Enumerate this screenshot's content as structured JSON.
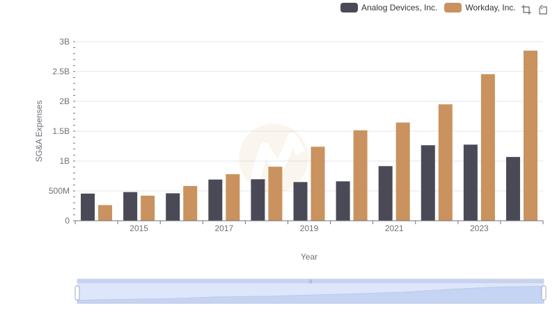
{
  "legend": [
    {
      "name": "Analog Devices, Inc.",
      "color": "#4a4a57"
    },
    {
      "name": "Workday, Inc.",
      "color": "#c9925e"
    }
  ],
  "toolbox": {
    "icons": [
      "zoom-icon",
      "restore-icon"
    ]
  },
  "chart_data": {
    "type": "bar",
    "xlabel": "Year",
    "ylabel": "SG&A Expenses",
    "categories": [
      "2014",
      "2015",
      "2016",
      "2017",
      "2018",
      "2019",
      "2020",
      "2021",
      "2022",
      "2023",
      "2024"
    ],
    "x_tick_labels": [
      "2015",
      "2017",
      "2019",
      "2021",
      "2023"
    ],
    "y_ticks": [
      {
        "value": 0,
        "label": "0"
      },
      {
        "value": 500000000,
        "label": "500M"
      },
      {
        "value": 1000000000,
        "label": "1B"
      },
      {
        "value": 1500000000,
        "label": "1.5B"
      },
      {
        "value": 2000000000,
        "label": "2B"
      },
      {
        "value": 2500000000,
        "label": "2.5B"
      },
      {
        "value": 3000000000,
        "label": "3B"
      }
    ],
    "ylim": [
      0,
      3000000000
    ],
    "grid": true,
    "legend_position": "top-right",
    "series": [
      {
        "name": "Analog Devices, Inc.",
        "color": "#4a4a57",
        "values": [
          455000000,
          480000000,
          460000000,
          690000000,
          695000000,
          648000000,
          660000000,
          915000000,
          1265000000,
          1275000000,
          1068000000
        ]
      },
      {
        "name": "Workday, Inc.",
        "color": "#c9925e",
        "values": [
          262000000,
          420000000,
          582000000,
          780000000,
          905000000,
          1240000000,
          1515000000,
          1645000000,
          1950000000,
          2455000000,
          2850000000
        ]
      }
    ],
    "dataZoom": {
      "start": 0,
      "end": 100
    }
  }
}
